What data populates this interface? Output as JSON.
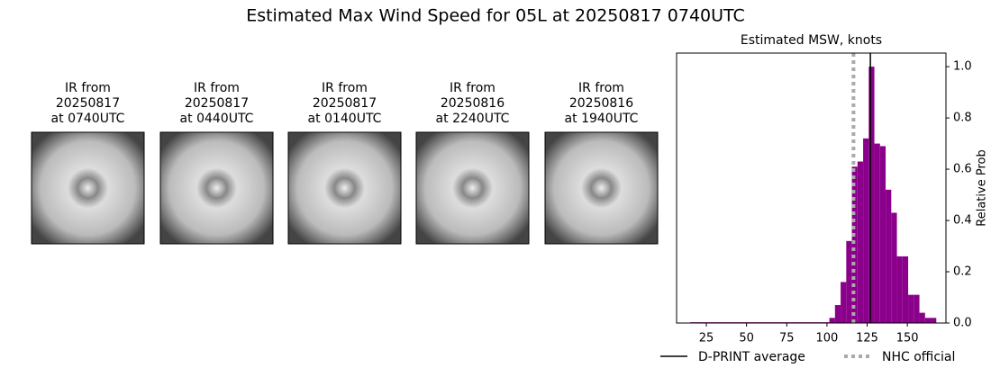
{
  "title": "Estimated Max Wind Speed for 05L at 20250817 0740UTC",
  "panels": [
    {
      "label": [
        "IR from",
        "20250817",
        "at 0740UTC"
      ]
    },
    {
      "label": [
        "IR from",
        "20250817",
        "at 0440UTC"
      ]
    },
    {
      "label": [
        "IR from",
        "20250817",
        "at 0140UTC"
      ]
    },
    {
      "label": [
        "IR from",
        "20250816",
        "at 2240UTC"
      ]
    },
    {
      "label": [
        "IR from",
        "20250816",
        "at 1940UTC"
      ]
    }
  ],
  "chart_data": {
    "type": "histogram",
    "title": "Estimated MSW, knots",
    "ylabel": "Relative Prob",
    "color": "#8b008b",
    "bins": [
      15,
      101.5,
      105,
      108.5,
      112,
      115.5,
      119,
      122.5,
      126,
      129.5,
      133,
      136.5,
      140,
      143.5,
      147,
      150.5,
      154,
      157.5,
      161,
      164.5,
      168
    ],
    "values": [
      0.003,
      0.02,
      0.07,
      0.16,
      0.32,
      0.61,
      0.63,
      0.72,
      1.0,
      0.7,
      0.69,
      0.52,
      0.43,
      0.26,
      0.26,
      0.11,
      0.11,
      0.04,
      0.02,
      0.02
    ],
    "xlim": [
      6.5,
      174
    ],
    "xticks": [
      25,
      50,
      75,
      100,
      125,
      150
    ],
    "ylim": [
      0,
      1.053
    ],
    "yticks": [
      {
        "value": 0,
        "label": "0.0"
      },
      0.2,
      0.4,
      0.6,
      0.8,
      {
        "value": 1,
        "label": "1.0"
      }
    ],
    "lines": [
      {
        "name": "D-PRINT average",
        "value": 127,
        "color": "#000000",
        "style": "solid"
      },
      {
        "name": "NHC official",
        "value": 116.5,
        "color": "#aaaaaa",
        "style": "dotted"
      }
    ]
  }
}
